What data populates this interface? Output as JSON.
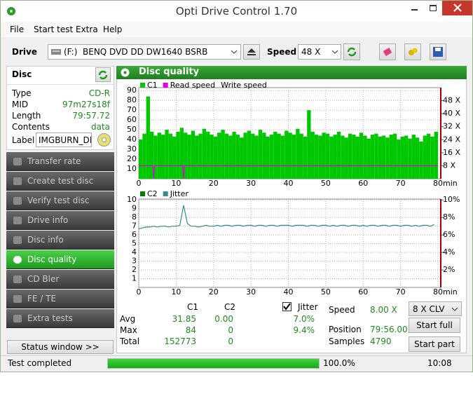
{
  "window": {
    "title": "Opti Drive Control 1.70"
  },
  "menu": [
    "File",
    "Start test",
    "Extra",
    "Help"
  ],
  "toolbar": {
    "drive_label": "Drive",
    "drive": "(F:)  BENQ DVD DD DW1640 BSRB",
    "speed_label": "Speed",
    "speed": "48 X"
  },
  "disc": {
    "title": "Disc",
    "properties": [
      {
        "name": "Type",
        "value": "CD-R"
      },
      {
        "name": "MID",
        "value": "97m27s18f"
      },
      {
        "name": "Length",
        "value": "79:57.72"
      },
      {
        "name": "Contents",
        "value": "data"
      }
    ],
    "label_name": "Label",
    "label_value": "IMGBURN_DIS"
  },
  "navigation": {
    "items": [
      "Transfer rate",
      "Create test disc",
      "Verify test disc",
      "Drive info",
      "Disc info",
      "Disc quality",
      "CD Bler",
      "FE / TE",
      "Extra tests"
    ],
    "selected": 5
  },
  "status_window": "Status window >>",
  "panel": {
    "title": "Disc quality"
  },
  "chart_data": [
    {
      "type": "combo",
      "series": [
        {
          "name": "C1",
          "kind": "bar",
          "color": "#00c800",
          "x": [
            0,
            1,
            2,
            3,
            4,
            5,
            6,
            7,
            8,
            9,
            10,
            11,
            12,
            13,
            14,
            15,
            16,
            17,
            18,
            19,
            20,
            21,
            22,
            23,
            24,
            25,
            26,
            27,
            28,
            29,
            30,
            31,
            32,
            33,
            34,
            35,
            36,
            37,
            38,
            39,
            40,
            41,
            42,
            43,
            44,
            45,
            46,
            47,
            48,
            49,
            50,
            51,
            52,
            53,
            54,
            55,
            56,
            57,
            58,
            59,
            60,
            61,
            62,
            63,
            64,
            65,
            66,
            67,
            68,
            69,
            70,
            71,
            72,
            73,
            74,
            75,
            76,
            77,
            78,
            79
          ],
          "values": [
            40,
            46,
            84,
            48,
            44,
            47,
            45,
            50,
            46,
            43,
            48,
            52,
            47,
            45,
            49,
            44,
            46,
            51,
            48,
            45,
            43,
            47,
            50,
            46,
            44,
            48,
            45,
            42,
            47,
            49,
            46,
            44,
            50,
            47,
            43,
            45,
            48,
            46,
            44,
            49,
            47,
            45,
            51,
            46,
            43,
            70,
            48,
            45,
            44,
            47,
            46,
            43,
            45,
            48,
            44,
            42,
            46,
            45,
            43,
            47,
            44,
            41,
            45,
            46,
            43,
            44,
            42,
            45,
            46,
            40,
            43,
            44,
            41,
            45,
            42,
            38,
            44,
            46,
            43,
            48
          ]
        },
        {
          "name": "Read speed",
          "kind": "line",
          "axis": "y2",
          "color": "#e000e0",
          "x": [
            0,
            3.8,
            4,
            4.2,
            11.8,
            12,
            12.2,
            80
          ],
          "values": [
            8,
            8,
            0,
            8,
            8,
            0,
            8,
            8
          ]
        },
        {
          "name": "Write speed"
        }
      ],
      "xlim": [
        0,
        80
      ],
      "xticks": [
        0,
        10,
        20,
        30,
        40,
        50,
        60,
        70,
        80
      ],
      "xlabel": "min",
      "ylim": [
        0,
        93
      ],
      "yticks": [
        10,
        20,
        30,
        40,
        50,
        60,
        70,
        80,
        90
      ],
      "y2lim": [
        0,
        56
      ],
      "y2ticks": [
        {
          "value": 8,
          "label": "8 X"
        },
        {
          "value": 16,
          "label": "16 X"
        },
        {
          "value": 24,
          "label": "24 X"
        },
        {
          "value": 32,
          "label": "32 X"
        },
        {
          "value": 40,
          "label": "40 X"
        },
        {
          "value": 48,
          "label": "48 X"
        }
      ],
      "grid": true
    },
    {
      "type": "combo",
      "series": [
        {
          "name": "C2",
          "kind": "bar",
          "color": "#008000"
        },
        {
          "name": "Jitter",
          "kind": "line",
          "axis": "y2",
          "color": "#3a8a8a",
          "x": [
            0,
            1,
            2,
            3,
            4,
            5,
            6,
            7,
            8,
            9,
            10,
            11,
            12,
            13,
            14,
            15,
            16,
            17,
            18,
            19,
            20,
            21,
            22,
            23,
            24,
            25,
            26,
            27,
            28,
            29,
            30,
            31,
            32,
            33,
            34,
            35,
            36,
            37,
            38,
            39,
            40,
            41,
            42,
            43,
            44,
            45,
            46,
            47,
            48,
            49,
            50,
            51,
            52,
            53,
            54,
            55,
            56,
            57,
            58,
            59,
            60,
            61,
            62,
            63,
            64,
            65,
            66,
            67,
            68,
            69,
            70,
            71,
            72,
            73,
            74,
            75,
            76,
            77,
            78,
            79
          ],
          "values": [
            6.7,
            6.8,
            6.9,
            6.9,
            7.0,
            6.9,
            7.0,
            7.0,
            6.9,
            7.0,
            7.0,
            7.1,
            9.4,
            7.3,
            7.0,
            7.0,
            6.9,
            7.0,
            7.1,
            7.0,
            7.0,
            7.1,
            7.0,
            7.1,
            7.1,
            7.0,
            7.1,
            7.1,
            7.0,
            7.1,
            7.1,
            7.0,
            7.1,
            7.1,
            7.0,
            7.1,
            7.1,
            7.0,
            7.1,
            7.1,
            7.1,
            7.0,
            7.1,
            7.1,
            7.1,
            7.0,
            7.1,
            7.1,
            7.0,
            7.1,
            7.1,
            7.0,
            7.1,
            7.0,
            7.1,
            7.1,
            7.0,
            7.1,
            7.1,
            7.0,
            7.1,
            7.0,
            7.1,
            7.1,
            7.0,
            7.1,
            7.1,
            7.0,
            7.1,
            7.1,
            7.0,
            7.1,
            7.1,
            7.0,
            7.1,
            7.0,
            7.1,
            7.1,
            7.0,
            7.2
          ]
        }
      ],
      "xlim": [
        0,
        80
      ],
      "xticks": [
        0,
        10,
        20,
        30,
        40,
        50,
        60,
        70,
        80
      ],
      "xlabel": "min",
      "ylim": [
        0,
        10.1
      ],
      "yticks": [
        1,
        2,
        3,
        4,
        5,
        6,
        7,
        8,
        9,
        10
      ],
      "y2lim": [
        0,
        10.1
      ],
      "y2ticks": [
        {
          "value": 2,
          "label": "2%"
        },
        {
          "value": 4,
          "label": "4%"
        },
        {
          "value": 6,
          "label": "6%"
        },
        {
          "value": 8,
          "label": "8%"
        },
        {
          "value": 10,
          "label": "10%"
        }
      ],
      "grid": true
    }
  ],
  "stats": {
    "columns": [
      "C1",
      "C2"
    ],
    "rows": [
      {
        "name": "Avg",
        "values": [
          "31.85",
          "0.00"
        ]
      },
      {
        "name": "Max",
        "values": [
          "84",
          "0"
        ]
      },
      {
        "name": "Total",
        "values": [
          "152773",
          "0"
        ]
      }
    ],
    "jitter": {
      "label": "Jitter",
      "checked": true,
      "values": [
        "7.0%",
        "9.4%"
      ]
    },
    "info": [
      {
        "name": "Speed",
        "value": "8.00 X"
      },
      {
        "name": "Position",
        "value": "79:56.00"
      },
      {
        "name": "Samples",
        "value": "4790"
      }
    ],
    "mode": "8 X CLV",
    "buttons": [
      "Start full",
      "Start part"
    ]
  },
  "statusbar": {
    "message": "Test completed",
    "progress": 100,
    "progress_label": "100.0%",
    "time": "10:08"
  }
}
